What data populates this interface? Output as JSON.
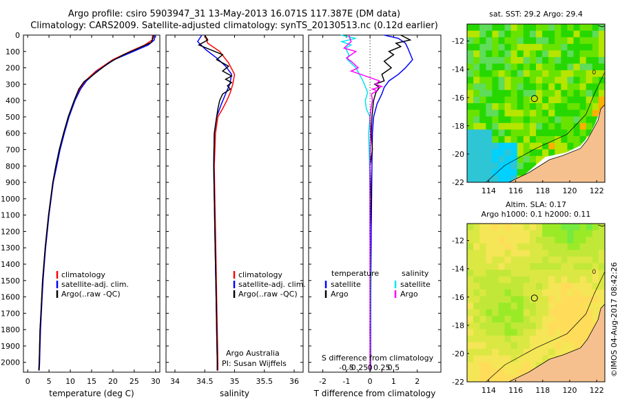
{
  "header": {
    "line1": "Argo profile: csiro 5903947_31 13-May-2013 16.071S 117.387E (DM data)",
    "line2": "Climatology: CARS2009. Satellite-adjusted climatology: synTS_20130513.nc (0.12d earlier)"
  },
  "footer": {
    "timestamp": "©IMOS 04-Aug-2017 08:42:26"
  },
  "colors": {
    "climatology": "#ff0000",
    "satellite": "#0000ff",
    "argo": "#000000",
    "salinity_satellite": "#00e5ee",
    "salinity_argo": "#ff00ff",
    "land": "#f5c08e",
    "marker": "#000000"
  },
  "chart_data": [
    {
      "type": "line",
      "name": "temperature",
      "xlabel": "temperature (deg C)",
      "xlim": [
        -1,
        31
      ],
      "xticks": [
        0,
        5,
        10,
        15,
        20,
        25,
        30
      ],
      "ylim": [
        0,
        2060
      ],
      "yticks": [
        0,
        100,
        200,
        300,
        400,
        500,
        600,
        700,
        800,
        900,
        1000,
        1100,
        1200,
        1300,
        1400,
        1500,
        1600,
        1700,
        1800,
        1900,
        2000
      ],
      "legend": [
        "climatology",
        "satellite-adj. clim.",
        "Argo(..raw -QC)"
      ],
      "series": [
        {
          "name": "climatology",
          "points": [
            [
              29.3,
              0
            ],
            [
              29.2,
              30
            ],
            [
              27.5,
              60
            ],
            [
              24,
              100
            ],
            [
              20,
              150
            ],
            [
              16,
              220
            ],
            [
              13.5,
              280
            ],
            [
              12.2,
              330
            ],
            [
              11,
              400
            ],
            [
              9.6,
              500
            ],
            [
              8.5,
              600
            ],
            [
              7.5,
              700
            ],
            [
              6.7,
              800
            ],
            [
              5.9,
              900
            ],
            [
              5.4,
              1000
            ],
            [
              4.9,
              1100
            ],
            [
              4.5,
              1200
            ],
            [
              4.1,
              1300
            ],
            [
              3.8,
              1400
            ],
            [
              3.5,
              1500
            ],
            [
              3.3,
              1600
            ],
            [
              3.1,
              1700
            ],
            [
              2.9,
              1800
            ],
            [
              2.8,
              1900
            ],
            [
              2.7,
              2000
            ],
            [
              2.6,
              2050
            ]
          ]
        },
        {
          "name": "satellite-adj. clim.",
          "points": [
            [
              29.8,
              0
            ],
            [
              29.7,
              30
            ],
            [
              28.3,
              60
            ],
            [
              24.8,
              100
            ],
            [
              20.3,
              150
            ],
            [
              16.3,
              220
            ],
            [
              13.8,
              280
            ],
            [
              12.4,
              330
            ],
            [
              11.1,
              400
            ],
            [
              9.7,
              500
            ],
            [
              8.6,
              600
            ],
            [
              7.6,
              700
            ],
            [
              6.8,
              800
            ],
            [
              6,
              900
            ],
            [
              5.5,
              1000
            ],
            [
              5,
              1100
            ],
            [
              4.6,
              1200
            ],
            [
              4.2,
              1300
            ],
            [
              3.9,
              1400
            ],
            [
              3.6,
              1500
            ],
            [
              3.4,
              1600
            ],
            [
              3.2,
              1700
            ],
            [
              3,
              1800
            ],
            [
              2.9,
              1900
            ],
            [
              2.8,
              2000
            ],
            [
              2.7,
              2050
            ]
          ]
        },
        {
          "name": "Argo(..raw -QC)",
          "points": [
            [
              29.5,
              0
            ],
            [
              29.4,
              20
            ],
            [
              29,
              45
            ],
            [
              26,
              80
            ],
            [
              22.5,
              120
            ],
            [
              19,
              170
            ],
            [
              16.5,
              220
            ],
            [
              14.8,
              255
            ],
            [
              13.2,
              285
            ],
            [
              12,
              330
            ],
            [
              10.9,
              400
            ],
            [
              9.5,
              500
            ],
            [
              8.4,
              600
            ],
            [
              7.4,
              700
            ],
            [
              6.6,
              800
            ],
            [
              5.9,
              900
            ],
            [
              5.4,
              1000
            ],
            [
              4.9,
              1100
            ],
            [
              4.5,
              1200
            ],
            [
              4.1,
              1300
            ],
            [
              3.8,
              1400
            ],
            [
              3.5,
              1500
            ],
            [
              3.3,
              1600
            ],
            [
              3.1,
              1700
            ],
            [
              2.9,
              1800
            ],
            [
              2.8,
              1900
            ],
            [
              2.7,
              2000
            ],
            [
              2.6,
              2050
            ]
          ]
        }
      ]
    },
    {
      "type": "line",
      "name": "salinity",
      "xlabel": "salinity",
      "xlim": [
        33.85,
        36.15
      ],
      "xticks": [
        34,
        34.5,
        35,
        35.5,
        36
      ],
      "ylim": [
        0,
        2060
      ],
      "legend": [
        "climatology",
        "satellite-adj. clim.",
        "Argo(..raw -QC)"
      ],
      "annotation": [
        "Argo Australia",
        "PI: Susan Wijffels"
      ],
      "series": [
        {
          "name": "climatology",
          "points": [
            [
              34.5,
              0
            ],
            [
              34.55,
              50
            ],
            [
              34.75,
              100
            ],
            [
              34.9,
              170
            ],
            [
              35.0,
              240
            ],
            [
              34.97,
              300
            ],
            [
              34.93,
              350
            ],
            [
              34.87,
              400
            ],
            [
              34.8,
              450
            ],
            [
              34.72,
              500
            ],
            [
              34.68,
              600
            ],
            [
              34.66,
              800
            ],
            [
              34.67,
              1000
            ],
            [
              34.68,
              1200
            ],
            [
              34.69,
              1400
            ],
            [
              34.7,
              1600
            ],
            [
              34.71,
              1800
            ],
            [
              34.72,
              2000
            ],
            [
              34.72,
              2050
            ]
          ]
        },
        {
          "name": "satellite-adj. clim.",
          "points": [
            [
              34.45,
              0
            ],
            [
              34.38,
              40
            ],
            [
              34.52,
              90
            ],
            [
              34.7,
              140
            ],
            [
              34.85,
              190
            ],
            [
              34.95,
              240
            ],
            [
              34.92,
              300
            ],
            [
              34.86,
              350
            ],
            [
              34.78,
              420
            ],
            [
              34.7,
              500
            ],
            [
              34.66,
              600
            ],
            [
              34.65,
              800
            ],
            [
              34.66,
              1000
            ],
            [
              34.67,
              1200
            ],
            [
              34.68,
              1400
            ],
            [
              34.69,
              1600
            ],
            [
              34.7,
              1800
            ],
            [
              34.71,
              2000
            ],
            [
              34.71,
              2050
            ]
          ]
        },
        {
          "name": "Argo(..raw -QC)",
          "points": [
            [
              34.5,
              0
            ],
            [
              34.55,
              30
            ],
            [
              34.4,
              60
            ],
            [
              34.6,
              90
            ],
            [
              34.8,
              120
            ],
            [
              34.7,
              150
            ],
            [
              34.9,
              190
            ],
            [
              34.8,
              220
            ],
            [
              34.95,
              250
            ],
            [
              34.85,
              270
            ],
            [
              34.95,
              290
            ],
            [
              34.88,
              310
            ],
            [
              34.93,
              330
            ],
            [
              34.8,
              360
            ],
            [
              34.75,
              400
            ],
            [
              34.72,
              450
            ],
            [
              34.7,
              500
            ],
            [
              34.66,
              600
            ],
            [
              34.65,
              800
            ],
            [
              34.66,
              1000
            ],
            [
              34.67,
              1200
            ],
            [
              34.68,
              1400
            ],
            [
              34.69,
              1600
            ],
            [
              34.7,
              1800
            ],
            [
              34.71,
              2000
            ],
            [
              34.71,
              2050
            ]
          ]
        }
      ]
    },
    {
      "type": "line",
      "name": "difference",
      "xlabel": "T difference from climatology",
      "xlabel_top": "S difference from climatology",
      "xlim": [
        -2.6,
        3.0
      ],
      "xticks": [
        -2,
        -1,
        0,
        1,
        2
      ],
      "xticks_s": [
        -0.5,
        -0.25,
        0,
        0.25,
        0.5
      ],
      "xtick_s_labels": [
        "-0.5",
        "-0.25",
        "0",
        "0.25",
        "0.5"
      ],
      "ylim": [
        0,
        2060
      ],
      "legend_t": {
        "title": "temperature",
        "items": [
          "satellite",
          "Argo"
        ]
      },
      "legend_s": {
        "title": "salinity",
        "items": [
          "satellite",
          "Argo"
        ]
      },
      "series": [
        {
          "name": "T satellite",
          "points": [
            [
              0.6,
              0
            ],
            [
              1.2,
              20
            ],
            [
              1.5,
              50
            ],
            [
              1.6,
              80
            ],
            [
              1.8,
              150
            ],
            [
              1.5,
              200
            ],
            [
              1.2,
              240
            ],
            [
              0.8,
              280
            ],
            [
              0.6,
              320
            ],
            [
              0.5,
              360
            ],
            [
              0.3,
              420
            ],
            [
              0.15,
              500
            ],
            [
              0.1,
              600
            ],
            [
              0.08,
              800
            ],
            [
              0.05,
              1200
            ],
            [
              0.03,
              1600
            ],
            [
              0.02,
              2050
            ]
          ]
        },
        {
          "name": "T Argo",
          "points": [
            [
              1.3,
              0
            ],
            [
              1.7,
              30
            ],
            [
              1.1,
              50
            ],
            [
              1.3,
              70
            ],
            [
              0.8,
              100
            ],
            [
              1.0,
              120
            ],
            [
              0.6,
              160
            ],
            [
              0.9,
              200
            ],
            [
              0.5,
              240
            ],
            [
              0.6,
              280
            ],
            [
              0.2,
              300
            ],
            [
              0.4,
              320
            ],
            [
              0.25,
              350
            ],
            [
              0.15,
              400
            ],
            [
              0.08,
              500
            ],
            [
              0.05,
              600
            ],
            [
              0.1,
              700
            ],
            [
              0,
              800
            ],
            [
              0.05,
              1000
            ],
            [
              0,
              1200
            ],
            [
              0.03,
              1500
            ],
            [
              0,
              1800
            ],
            [
              0.02,
              2050
            ]
          ]
        },
        {
          "name": "S satellite",
          "points": [
            [
              -0.62,
              0
            ],
            [
              -0.3,
              20
            ],
            [
              -0.6,
              40
            ],
            [
              -0.4,
              60
            ],
            [
              -0.52,
              80
            ],
            [
              -0.45,
              120
            ],
            [
              -0.48,
              150
            ],
            [
              -0.3,
              200
            ],
            [
              -0.15,
              280
            ],
            [
              -0.05,
              350
            ],
            [
              -0.1,
              400
            ],
            [
              -0.08,
              450
            ],
            [
              0,
              500
            ],
            [
              -0.03,
              600
            ],
            [
              -0.01,
              800
            ],
            [
              0,
              1200
            ],
            [
              0.01,
              1500
            ],
            [
              0,
              2050
            ]
          ]
        },
        {
          "name": "S Argo",
          "points": [
            [
              -0.45,
              0
            ],
            [
              -0.4,
              40
            ],
            [
              -0.55,
              80
            ],
            [
              -0.3,
              100
            ],
            [
              -0.5,
              140
            ],
            [
              -0.4,
              160
            ],
            [
              -0.25,
              200
            ],
            [
              -0.4,
              220
            ],
            [
              0.2,
              280
            ],
            [
              0.12,
              300
            ],
            [
              0.25,
              315
            ],
            [
              0.05,
              330
            ],
            [
              0.15,
              340
            ],
            [
              0.03,
              360
            ],
            [
              0.05,
              400
            ],
            [
              0.02,
              450
            ],
            [
              0,
              500
            ],
            [
              0.01,
              600
            ],
            [
              0,
              800
            ],
            [
              0,
              1200
            ],
            [
              0,
              1600
            ],
            [
              0,
              2050
            ]
          ]
        }
      ]
    }
  ],
  "maps": [
    {
      "title_lines": [
        "sat. SST: 29.2 Argo: 29.4"
      ],
      "xticks": [
        114,
        116,
        118,
        120,
        122
      ],
      "yticks": [
        -12,
        -14,
        -16,
        -18,
        -20,
        -22
      ],
      "xlim": [
        112.4,
        122.6
      ],
      "ylim": [
        -22,
        -10.8
      ],
      "profile_position": {
        "lon": 117.387,
        "lat": -16.071
      },
      "colormap": [
        "#00d1ff",
        "#2ec5d5",
        "#5edc5a",
        "#26d800",
        "#68e300",
        "#b6e500",
        "#ffb000",
        "#ff8200"
      ]
    },
    {
      "title_lines": [
        "Altim. SLA: 0.17",
        "Argo h1000: 0.1 h2000: 0.11"
      ],
      "xticks": [
        114,
        116,
        118,
        120,
        122
      ],
      "yticks": [
        -12,
        -14,
        -16,
        -18,
        -20,
        -22
      ],
      "xlim": [
        112.4,
        122.6
      ],
      "ylim": [
        -22,
        -10.8
      ],
      "profile_position": {
        "lon": 117.387,
        "lat": -16.071
      },
      "colormap": [
        "#75ea40",
        "#9bea28",
        "#c1e838",
        "#dbe843",
        "#f4e656",
        "#ffdc5a"
      ]
    }
  ]
}
